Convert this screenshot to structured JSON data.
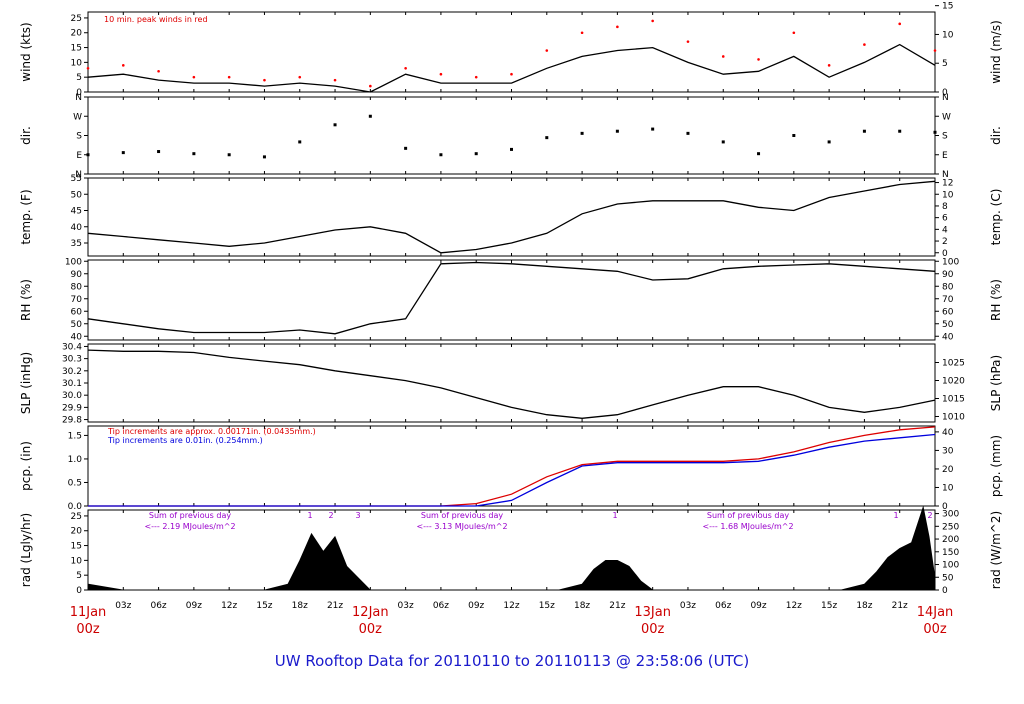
{
  "title": "UW Rooftop Data for 20110110  to  20110113 @ 23:58:06  (UTC)",
  "colors": {
    "title": "#1a1acc",
    "day": "#cc0000",
    "peak": "#ff0000",
    "red": "#dd0000",
    "blue": "#0000dd",
    "purple": "#9900cc",
    "ink": "#000000"
  },
  "time_axis": {
    "ticks": [
      "03z",
      "06z",
      "09z",
      "12z",
      "15z",
      "18z",
      "21z",
      "03z",
      "06z",
      "09z",
      "12z",
      "15z",
      "18z",
      "21z",
      "03z",
      "06z",
      "09z",
      "12z",
      "15z",
      "18z",
      "21z"
    ],
    "day_labels": [
      {
        "date": "11Jan",
        "time": "00z",
        "hour": 0
      },
      {
        "date": "12Jan",
        "time": "00z",
        "hour": 24
      },
      {
        "date": "13Jan",
        "time": "00z",
        "hour": 48
      },
      {
        "date": "14Jan",
        "time": "00z",
        "hour": 72
      }
    ]
  },
  "panels": {
    "wind": {
      "ylabel": "wind (kts)",
      "ylabel_right": "wind (m/s)",
      "note": "10 min. peak winds in red",
      "yticks": [
        "0",
        "5",
        "10",
        "15",
        "20",
        "25"
      ],
      "yticks_right": [
        "0",
        "5",
        "10",
        "15"
      ],
      "ylim": [
        0,
        27
      ]
    },
    "dir": {
      "ylabel": "dir.",
      "ylabel_right": "dir.",
      "yticks": [
        "N",
        "E",
        "S",
        "W",
        "N"
      ],
      "yticks_right": [
        "N",
        "E",
        "S",
        "W",
        "N"
      ],
      "ylim": [
        0,
        360
      ]
    },
    "temp": {
      "ylabel": "temp. (F)",
      "ylabel_right": "temp. (C)",
      "yticks": [
        "35",
        "40",
        "45",
        "50",
        "55"
      ],
      "yticks_right": [
        "0",
        "2",
        "4",
        "6",
        "8",
        "10",
        "12"
      ],
      "ylim": [
        31,
        55
      ]
    },
    "rh": {
      "ylabel": "RH (%)",
      "ylabel_right": "RH (%)",
      "yticks": [
        "40",
        "50",
        "60",
        "70",
        "80",
        "90",
        "100"
      ],
      "yticks_right": [
        "40",
        "50",
        "60",
        "70",
        "80",
        "90",
        "100"
      ],
      "ylim": [
        37,
        101
      ]
    },
    "slp": {
      "ylabel": "SLP (inHg)",
      "ylabel_right": "SLP (hPa)",
      "yticks": [
        "29.8",
        "29.9",
        "30.0",
        "30.1",
        "30.2",
        "30.3",
        "30.4"
      ],
      "yticks_right": [
        "1010",
        "1015",
        "1020",
        "1025"
      ],
      "ylim": [
        29.78,
        30.42
      ]
    },
    "pcp": {
      "ylabel": "pcp. (in)",
      "ylabel_right": "pcp. (mm)",
      "yticks": [
        "0.0",
        "0.5",
        "1.0",
        "1.5"
      ],
      "yticks_right": [
        "0",
        "10",
        "20",
        "30",
        "40"
      ],
      "ylim": [
        0,
        1.7
      ],
      "note_red": "Tip increments are approx. 0.00171in. (0.0435mm.)",
      "note_blue": "Tip increments are 0.01in. (0.254mm.)"
    },
    "rad": {
      "ylabel": "rad (Lgly/hr)",
      "ylabel_right": "rad (W/m^2)",
      "yticks": [
        "0",
        "5",
        "10",
        "15",
        "20",
        "25"
      ],
      "yticks_right": [
        "0",
        "50",
        "100",
        "150",
        "200",
        "250",
        "300"
      ],
      "ylim": [
        0,
        27
      ],
      "sums": [
        {
          "line1": "Sum of previous day",
          "line2": "<--- 2.19 MJoules/m^2"
        },
        {
          "line1": "Sum of previous day",
          "line2": "<--- 3.13 MJoules/m^2"
        },
        {
          "line1": "Sum of previous day",
          "line2": "<--- 1.68 MJoules/m^2"
        }
      ],
      "markers": [
        "1",
        "2",
        "3",
        "1",
        "1",
        "2"
      ]
    }
  },
  "chart_data": [
    {
      "type": "line",
      "title": "wind",
      "ylabel": "wind (kts)",
      "xlabel": "",
      "x": [
        0,
        3,
        6,
        9,
        12,
        15,
        18,
        21,
        24,
        27,
        30,
        33,
        36,
        39,
        42,
        45,
        48,
        51,
        54,
        57,
        60,
        63,
        66,
        69,
        72
      ],
      "series": [
        {
          "values": [
            5,
            6,
            4,
            3,
            3,
            2,
            3,
            2,
            0,
            6,
            3,
            3,
            3,
            8,
            12,
            14,
            15,
            10,
            6,
            7,
            12,
            5,
            10,
            16,
            9
          ]
        },
        {
          "values": [
            8,
            9,
            7,
            5,
            5,
            4,
            5,
            4,
            2,
            8,
            6,
            5,
            6,
            14,
            20,
            22,
            24,
            17,
            12,
            11,
            20,
            9,
            16,
            23,
            14
          ]
        }
      ]
    },
    {
      "type": "scatter",
      "title": "dir.",
      "ylabel": "dir.",
      "xlabel": "",
      "x": [
        0,
        3,
        6,
        9,
        12,
        15,
        18,
        21,
        24,
        27,
        30,
        33,
        36,
        39,
        42,
        45,
        48,
        51,
        54,
        57,
        60,
        63,
        66,
        69,
        72
      ],
      "series": [
        {
          "values": [
            90,
            100,
            105,
            95,
            90,
            80,
            150,
            230,
            270,
            120,
            90,
            95,
            115,
            170,
            190,
            200,
            210,
            190,
            150,
            95,
            180,
            150,
            200,
            200,
            195
          ]
        }
      ]
    },
    {
      "type": "line",
      "title": "temp.",
      "ylabel": "temp. (F)",
      "xlabel": "",
      "x": [
        0,
        3,
        6,
        9,
        12,
        15,
        18,
        21,
        24,
        27,
        30,
        33,
        36,
        39,
        42,
        45,
        48,
        51,
        54,
        57,
        60,
        63,
        66,
        69,
        72
      ],
      "series": [
        {
          "values": [
            38,
            37,
            36,
            35,
            34,
            35,
            37,
            39,
            40,
            38,
            32,
            33,
            35,
            38,
            44,
            47,
            48,
            48,
            48,
            46,
            45,
            49,
            51,
            53,
            54
          ]
        }
      ]
    },
    {
      "type": "line",
      "title": "RH",
      "ylabel": "RH (%)",
      "xlabel": "",
      "x": [
        0,
        3,
        6,
        9,
        12,
        15,
        18,
        21,
        24,
        27,
        30,
        33,
        36,
        39,
        42,
        45,
        48,
        51,
        54,
        57,
        60,
        63,
        66,
        69,
        72
      ],
      "series": [
        {
          "values": [
            54,
            50,
            46,
            43,
            43,
            43,
            45,
            42,
            50,
            54,
            98,
            99,
            98,
            96,
            94,
            92,
            85,
            86,
            94,
            96,
            97,
            98,
            96,
            94,
            92
          ]
        }
      ]
    },
    {
      "type": "line",
      "title": "SLP",
      "ylabel": "SLP (inHg)",
      "xlabel": "",
      "x": [
        0,
        3,
        6,
        9,
        12,
        15,
        18,
        21,
        24,
        27,
        30,
        33,
        36,
        39,
        42,
        45,
        48,
        51,
        54,
        57,
        60,
        63,
        66,
        69,
        72
      ],
      "series": [
        {
          "values": [
            30.37,
            30.36,
            30.36,
            30.35,
            30.31,
            30.28,
            30.25,
            30.2,
            30.16,
            30.12,
            30.06,
            29.98,
            29.9,
            29.84,
            29.81,
            29.84,
            29.92,
            30.0,
            30.07,
            30.07,
            30.0,
            29.9,
            29.86,
            29.9,
            29.96
          ]
        }
      ]
    },
    {
      "type": "line",
      "title": "pcp.",
      "ylabel": "pcp. (in)",
      "xlabel": "",
      "x": [
        0,
        3,
        6,
        9,
        12,
        15,
        18,
        21,
        24,
        27,
        30,
        33,
        36,
        39,
        42,
        45,
        48,
        51,
        54,
        57,
        60,
        63,
        66,
        69,
        72
      ],
      "series": [
        {
          "values": [
            0,
            0,
            0,
            0,
            0,
            0,
            0,
            0,
            0,
            0,
            0,
            0.05,
            0.25,
            0.62,
            0.88,
            0.95,
            0.95,
            0.95,
            0.95,
            1.0,
            1.15,
            1.35,
            1.5,
            1.62,
            1.68
          ]
        },
        {
          "values": [
            0,
            0,
            0,
            0,
            0,
            0,
            0,
            0,
            0,
            0,
            0,
            0,
            0.12,
            0.5,
            0.85,
            0.92,
            0.92,
            0.92,
            0.92,
            0.95,
            1.08,
            1.25,
            1.38,
            1.45,
            1.52
          ]
        }
      ]
    },
    {
      "type": "area",
      "title": "rad",
      "ylabel": "rad (Lgly/hr)",
      "xlabel": "",
      "x": [
        0,
        3,
        6,
        9,
        12,
        15,
        17,
        18,
        19,
        20,
        21,
        22,
        24,
        36,
        40,
        42,
        43,
        44,
        45,
        46,
        47,
        48,
        60,
        64,
        66,
        67,
        68,
        69,
        70,
        71,
        71.5,
        72
      ],
      "series": [
        {
          "values": [
            2,
            0,
            0,
            0,
            0,
            0,
            2,
            10,
            19,
            13,
            18,
            8,
            0,
            0,
            0,
            2,
            7,
            10,
            10,
            8,
            3,
            0,
            0,
            0,
            2,
            6,
            11,
            14,
            16,
            28,
            18,
            4
          ]
        }
      ]
    }
  ]
}
